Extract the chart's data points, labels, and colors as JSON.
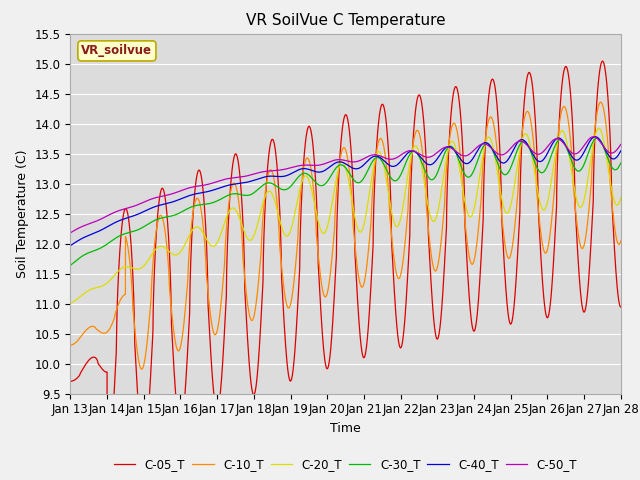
{
  "title": "VR SoilVue C Temperature",
  "xlabel": "Time",
  "ylabel": "Soil Temperature (C)",
  "ylim": [
    9.5,
    15.5
  ],
  "xlim": [
    0,
    15
  ],
  "xtick_labels": [
    "Jan 13",
    "Jan 14",
    "Jan 15",
    "Jan 16",
    "Jan 17",
    "Jan 18",
    "Jan 19",
    "Jan 20",
    "Jan 21",
    "Jan 22",
    "Jan 23",
    "Jan 24",
    "Jan 25",
    "Jan 26",
    "Jan 27",
    "Jan 28"
  ],
  "legend_labels": [
    "C-05_T",
    "C-10_T",
    "C-20_T",
    "C-30_T",
    "C-40_T",
    "C-50_T"
  ],
  "line_colors": [
    "#dd0000",
    "#ff8800",
    "#dddd00",
    "#00bb00",
    "#0000dd",
    "#bb00bb"
  ],
  "watermark_text": "VR_soilvue",
  "fig_facecolor": "#f0f0f0",
  "plot_bg_color": "#dcdcdc",
  "title_fontsize": 11,
  "label_fontsize": 9,
  "tick_fontsize": 8.5
}
